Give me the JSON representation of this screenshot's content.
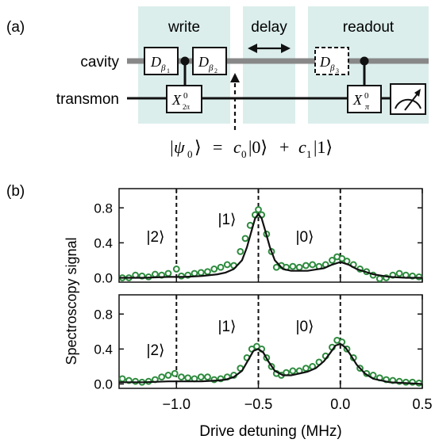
{
  "panel_labels": {
    "a": "(a)",
    "b": "(b)"
  },
  "circuit": {
    "sections": {
      "write": "write",
      "delay": "delay",
      "readout": "readout"
    },
    "wires": {
      "cavity": "cavity",
      "transmon": "transmon"
    },
    "gates": {
      "d_beta1": {
        "main": "D",
        "sub": "β",
        "subsub": "1"
      },
      "d_beta2": {
        "main": "D",
        "sub": "β",
        "subsub": "2"
      },
      "d_beta3": {
        "main": "D",
        "sub": "β",
        "subsub": "3"
      },
      "x_2pi": {
        "main": "X",
        "sup": "0",
        "sub": "2π"
      },
      "x_pi": {
        "main": "X",
        "sup": "0",
        "sub": "π"
      }
    },
    "state_equation": {
      "lhs": "|ψ",
      "lhs_sub": "0",
      "lhs_close": "⟩",
      "eq": "=",
      "c0": "c",
      "c0_sub": "0",
      "ket0": "|0⟩",
      "plus": "+",
      "c1": "c",
      "c1_sub": "1",
      "ket1": "|1⟩"
    },
    "colors": {
      "shade": "#dbeeec",
      "cavity_wire": "#888888",
      "transmon_wire": "#111111"
    }
  },
  "chart_data": [
    {
      "type": "scatter",
      "panel": "top",
      "annotations": [
        "|2⟩",
        "|1⟩",
        "|0⟩"
      ],
      "xlim": [
        -1.35,
        0.5
      ],
      "ylim": [
        -0.05,
        1.02
      ],
      "yticks": [
        0.0,
        0.4,
        0.8
      ],
      "vlines": [
        -1.0,
        -0.5,
        0.0
      ],
      "series": [
        {
          "kind": "points",
          "color": "#2e8b3e",
          "x": [
            -1.33,
            -1.29,
            -1.25,
            -1.21,
            -1.17,
            -1.13,
            -1.09,
            -1.05,
            -1.0,
            -0.97,
            -0.93,
            -0.89,
            -0.85,
            -0.81,
            -0.77,
            -0.73,
            -0.69,
            -0.65,
            -0.61,
            -0.58,
            -0.55,
            -0.52,
            -0.5,
            -0.48,
            -0.45,
            -0.42,
            -0.39,
            -0.36,
            -0.33,
            -0.29,
            -0.25,
            -0.21,
            -0.17,
            -0.13,
            -0.09,
            -0.05,
            -0.02,
            0.01,
            0.04,
            0.08,
            0.12,
            0.16,
            0.2,
            0.24,
            0.28,
            0.32,
            0.36,
            0.4,
            0.44,
            0.48
          ],
          "y": [
            0.0,
            0.0,
            0.03,
            0.02,
            0.01,
            0.04,
            0.03,
            0.05,
            0.1,
            0.02,
            0.03,
            0.05,
            0.06,
            0.07,
            0.1,
            0.12,
            0.15,
            0.14,
            0.3,
            0.45,
            0.6,
            0.72,
            0.78,
            0.72,
            0.5,
            0.3,
            0.12,
            0.14,
            0.12,
            0.13,
            0.12,
            0.14,
            0.15,
            0.13,
            0.15,
            0.2,
            0.24,
            0.22,
            0.19,
            0.15,
            0.1,
            0.07,
            0.03,
            -0.01,
            0.0,
            0.03,
            0.05,
            0.03,
            0.02,
            0.01
          ]
        },
        {
          "kind": "line",
          "color": "#111111",
          "x": [
            -1.35,
            -1.2,
            -1.05,
            -0.95,
            -0.85,
            -0.75,
            -0.7,
            -0.65,
            -0.6,
            -0.57,
            -0.54,
            -0.52,
            -0.5,
            -0.48,
            -0.46,
            -0.43,
            -0.4,
            -0.35,
            -0.3,
            -0.2,
            -0.1,
            -0.05,
            0.0,
            0.05,
            0.1,
            0.2,
            0.3,
            0.4,
            0.5
          ],
          "y": [
            0.0,
            0.0,
            0.01,
            0.01,
            0.02,
            0.04,
            0.06,
            0.1,
            0.2,
            0.35,
            0.55,
            0.68,
            0.73,
            0.68,
            0.55,
            0.35,
            0.2,
            0.1,
            0.08,
            0.08,
            0.11,
            0.15,
            0.18,
            0.15,
            0.1,
            0.04,
            0.01,
            0.0,
            0.0
          ]
        }
      ]
    },
    {
      "type": "scatter",
      "panel": "bottom",
      "annotations": [
        "|2⟩",
        "|1⟩",
        "|0⟩"
      ],
      "xlabel": "Drive detuning (MHz)",
      "xticks": [
        -1.0,
        -0.5,
        0.0,
        0.5
      ],
      "xlim": [
        -1.35,
        0.5
      ],
      "ylim": [
        -0.05,
        1.02
      ],
      "yticks": [
        0.0,
        0.4,
        0.8
      ],
      "vlines": [
        -1.0,
        -0.5,
        0.0
      ],
      "series": [
        {
          "kind": "points",
          "color": "#2e8b3e",
          "x": [
            -1.33,
            -1.29,
            -1.25,
            -1.21,
            -1.17,
            -1.13,
            -1.09,
            -1.05,
            -1.01,
            -0.97,
            -0.93,
            -0.89,
            -0.85,
            -0.81,
            -0.77,
            -0.73,
            -0.69,
            -0.65,
            -0.61,
            -0.57,
            -0.54,
            -0.51,
            -0.48,
            -0.45,
            -0.42,
            -0.39,
            -0.36,
            -0.33,
            -0.29,
            -0.25,
            -0.21,
            -0.17,
            -0.13,
            -0.09,
            -0.05,
            -0.02,
            0.01,
            0.04,
            0.08,
            0.12,
            0.16,
            0.2,
            0.24,
            0.28,
            0.32,
            0.36,
            0.4,
            0.44,
            0.48
          ],
          "y": [
            0.06,
            0.04,
            0.03,
            0.02,
            0.03,
            0.05,
            0.08,
            0.1,
            0.12,
            0.08,
            0.07,
            0.06,
            0.08,
            0.08,
            0.05,
            0.06,
            0.08,
            0.1,
            0.18,
            0.3,
            0.4,
            0.43,
            0.4,
            0.3,
            0.2,
            0.12,
            0.1,
            0.13,
            0.15,
            0.15,
            0.18,
            0.2,
            0.25,
            0.32,
            0.42,
            0.5,
            0.48,
            0.4,
            0.3,
            0.18,
            0.12,
            0.1,
            0.07,
            0.05,
            0.04,
            0.03,
            0.02,
            0.02,
            0.01
          ]
        },
        {
          "kind": "line",
          "color": "#111111",
          "x": [
            -1.35,
            -1.2,
            -1.05,
            -0.95,
            -0.85,
            -0.75,
            -0.7,
            -0.65,
            -0.6,
            -0.56,
            -0.53,
            -0.5,
            -0.47,
            -0.44,
            -0.4,
            -0.35,
            -0.3,
            -0.25,
            -0.2,
            -0.15,
            -0.1,
            -0.06,
            -0.03,
            0.0,
            0.03,
            0.06,
            0.1,
            0.15,
            0.2,
            0.3,
            0.4,
            0.5
          ],
          "y": [
            0.02,
            0.02,
            0.03,
            0.03,
            0.03,
            0.04,
            0.05,
            0.08,
            0.15,
            0.28,
            0.38,
            0.4,
            0.36,
            0.26,
            0.15,
            0.1,
            0.1,
            0.12,
            0.14,
            0.18,
            0.26,
            0.36,
            0.44,
            0.46,
            0.42,
            0.34,
            0.22,
            0.12,
            0.06,
            0.02,
            0.01,
            0.0
          ]
        }
      ]
    }
  ],
  "shared": {
    "ylabel": "Spectroscopy signal"
  }
}
